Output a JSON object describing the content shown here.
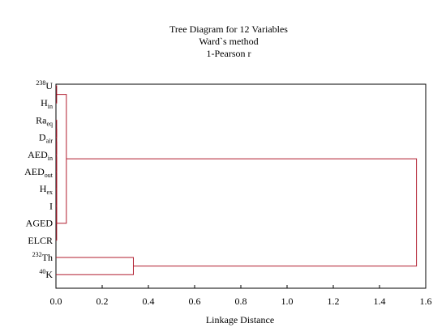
{
  "chart_data": {
    "type": "dendrogram",
    "title_lines": [
      "Tree Diagram for 12  Variables",
      "Ward`s method",
      "1-Pearson r"
    ],
    "xlabel": "Linkage Distance",
    "xlim": [
      0,
      1.6
    ],
    "xticks": [
      "0.0",
      "0.2",
      "0.4",
      "0.6",
      "0.8",
      "1.0",
      "1.2",
      "1.4",
      "1.6"
    ],
    "xtick_values": [
      0,
      0.2,
      0.4,
      0.6,
      0.8,
      1.0,
      1.2,
      1.4,
      1.6
    ],
    "leaves": [
      {
        "id": "U238",
        "base": "U",
        "sup": "238",
        "sub": ""
      },
      {
        "id": "Hin",
        "base": "H",
        "sup": "",
        "sub": "in"
      },
      {
        "id": "Raeq",
        "base": "Ra",
        "sup": "",
        "sub": "eq"
      },
      {
        "id": "Dair",
        "base": "D",
        "sup": "",
        "sub": "air"
      },
      {
        "id": "AEDin",
        "base": "AED",
        "sup": "",
        "sub": "in"
      },
      {
        "id": "AEDout",
        "base": "AED",
        "sup": "",
        "sub": "out"
      },
      {
        "id": "Hex",
        "base": "H",
        "sup": "",
        "sub": "ex"
      },
      {
        "id": "I",
        "base": "I",
        "sup": "",
        "sub": ""
      },
      {
        "id": "AGED",
        "base": "AGED",
        "sup": "",
        "sub": ""
      },
      {
        "id": "ELCR",
        "base": "ELCR",
        "sup": "",
        "sub": ""
      },
      {
        "id": "Th232",
        "base": "Th",
        "sup": "232",
        "sub": ""
      },
      {
        "id": "K40",
        "base": "K",
        "sup": "40",
        "sub": ""
      }
    ],
    "merges": [
      {
        "id": "m1",
        "left": "U238",
        "right": "Hin",
        "height": 0.003
      },
      {
        "id": "m2",
        "left": "Raeq",
        "right": "Dair",
        "height": 0.003
      },
      {
        "id": "m3",
        "left": "m2",
        "right": "AEDin",
        "height": 0.003
      },
      {
        "id": "m4",
        "left": "m3",
        "right": "AEDout",
        "height": 0.003
      },
      {
        "id": "m5",
        "left": "m4",
        "right": "Hex",
        "height": 0.003
      },
      {
        "id": "m6",
        "left": "m5",
        "right": "I",
        "height": 0.003
      },
      {
        "id": "m7",
        "left": "m6",
        "right": "AGED",
        "height": 0.003
      },
      {
        "id": "m8",
        "left": "m7",
        "right": "ELCR",
        "height": 0.003
      },
      {
        "id": "m9",
        "left": "m1",
        "right": "m8",
        "height": 0.045
      },
      {
        "id": "m10",
        "left": "Th232",
        "right": "K40",
        "height": 0.335
      },
      {
        "id": "m11",
        "left": "m9",
        "right": "m10",
        "height": 1.56
      }
    ],
    "line_color": "#b01c2e",
    "grid": false
  }
}
